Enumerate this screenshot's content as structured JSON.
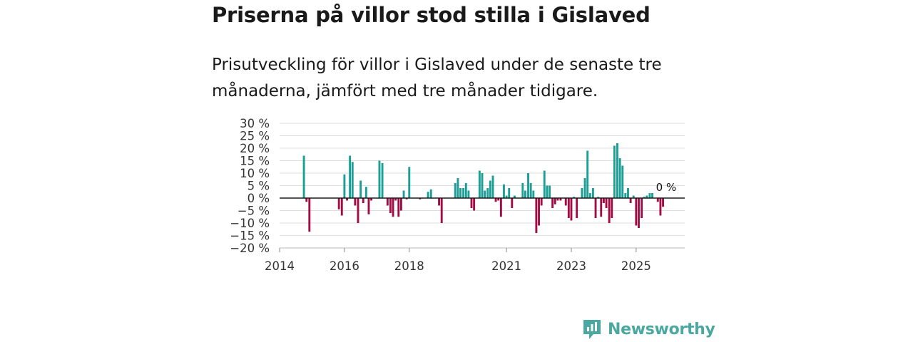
{
  "title": "Priserna på villor stod stilla i Gislaved",
  "subtitle": "Prisutveckling för villor i Gislaved under de senaste tre månaderna, jämfört med tre månader tidigare.",
  "brand": "Newsworthy",
  "colors": {
    "positive": "#1a9e96",
    "negative": "#a00d45",
    "grid": "#dddddd",
    "axis": "#1a1a1a",
    "brand": "#4aa8a0"
  },
  "chart_data": {
    "type": "bar",
    "title": "Priserna på villor stod stilla i Gislaved",
    "xlabel": "",
    "ylabel": "",
    "ylim": [
      -20,
      30
    ],
    "xlim": [
      2014.0,
      2026.5
    ],
    "y_ticks": [
      30,
      25,
      20,
      15,
      10,
      5,
      0,
      -5,
      -10,
      -15,
      -20
    ],
    "y_tick_labels": [
      "30 %",
      "25 %",
      "20 %",
      "15 %",
      "10 %",
      "5 %",
      "0 %",
      "−5 %",
      "−10 %",
      "−15 %",
      "−20 %"
    ],
    "x_ticks": [
      2014,
      2016,
      2018,
      2021,
      2023,
      2025
    ],
    "x_tick_labels": [
      "2014",
      "2016",
      "2018",
      "2021",
      "2023",
      "2025"
    ],
    "last_value_label": "0 %",
    "series": [
      {
        "name": "Prisutveckling",
        "x": [
          2014.75,
          2014.83,
          2014.92,
          2015.83,
          2015.92,
          2016.0,
          2016.08,
          2016.17,
          2016.25,
          2016.33,
          2016.42,
          2016.5,
          2016.58,
          2016.67,
          2016.75,
          2016.83,
          2017.08,
          2017.17,
          2017.33,
          2017.42,
          2017.5,
          2017.58,
          2017.67,
          2017.75,
          2017.83,
          2017.92,
          2018.0,
          2018.33,
          2018.58,
          2018.67,
          2018.92,
          2019.0,
          2019.42,
          2019.5,
          2019.58,
          2019.67,
          2019.75,
          2019.83,
          2019.92,
          2020.0,
          2020.17,
          2020.25,
          2020.33,
          2020.42,
          2020.5,
          2020.58,
          2020.67,
          2020.75,
          2020.83,
          2020.92,
          2021.0,
          2021.08,
          2021.17,
          2021.25,
          2021.5,
          2021.58,
          2021.67,
          2021.75,
          2021.83,
          2021.92,
          2022.0,
          2022.08,
          2022.17,
          2022.25,
          2022.33,
          2022.42,
          2022.5,
          2022.58,
          2022.67,
          2022.83,
          2022.92,
          2023.0,
          2023.08,
          2023.17,
          2023.33,
          2023.42,
          2023.5,
          2023.58,
          2023.67,
          2023.75,
          2023.83,
          2023.92,
          2024.0,
          2024.08,
          2024.17,
          2024.25,
          2024.33,
          2024.42,
          2024.5,
          2024.58,
          2024.67,
          2024.75,
          2024.83,
          2024.92,
          2025.0,
          2025.08,
          2025.17,
          2025.25,
          2025.33,
          2025.42,
          2025.5,
          2025.58,
          2025.67,
          2025.75,
          2025.83,
          2025.92
        ],
        "values": [
          17,
          -1.5,
          -13.5,
          -4.5,
          -7,
          9.5,
          -1,
          17,
          14.5,
          -3,
          -10,
          7,
          -2,
          4.5,
          -6.5,
          -1,
          15,
          14,
          -3,
          -6,
          -7.5,
          -1,
          -7.5,
          -5,
          3,
          -0.5,
          12.5,
          -0.5,
          2.5,
          3.5,
          -3,
          -10,
          6,
          8,
          4,
          4,
          6,
          3,
          -4,
          -5,
          11,
          10,
          3,
          4,
          7,
          9,
          -1.5,
          -1,
          -7.5,
          5.5,
          1,
          4,
          -4,
          1,
          6,
          3,
          10,
          6,
          3,
          -14,
          -11,
          -3,
          11,
          5,
          5,
          -4,
          -2.5,
          -1,
          -1,
          -3,
          -8,
          -9,
          0.5,
          -8,
          4,
          8,
          19,
          2,
          4,
          -8,
          0.5,
          -7.5,
          -2,
          -4,
          -10,
          -8,
          21,
          22,
          16,
          13,
          2,
          4,
          -2,
          1,
          -11,
          -12,
          -8,
          0.5,
          1,
          2,
          2,
          0,
          -1.5,
          -7,
          -3.5,
          0
        ]
      }
    ]
  }
}
